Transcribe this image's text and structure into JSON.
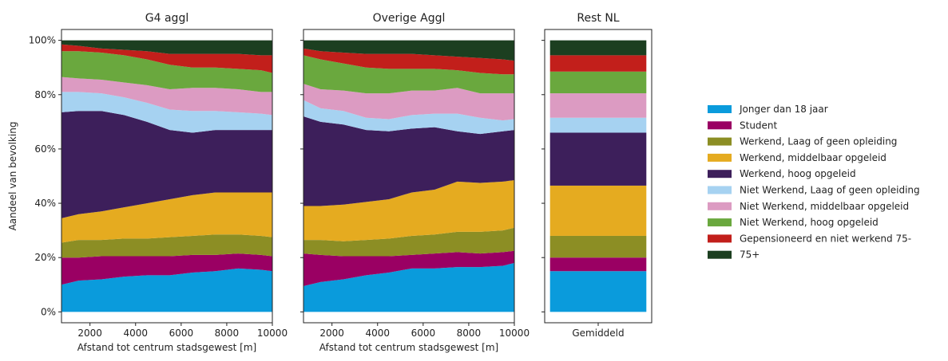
{
  "chart_data": [
    {
      "type": "area",
      "title": "G4 aggl",
      "xlabel": "Afstand tot centrum stadsgewest [m]",
      "ylabel": "Aandeel van bevolking",
      "x": [
        750,
        1500,
        2500,
        3500,
        4500,
        5500,
        6500,
        7500,
        8500,
        9500,
        10000
      ],
      "xlim": [
        750,
        10000
      ],
      "xticks": [
        2000,
        4000,
        6000,
        8000,
        10000
      ],
      "ylim": [
        -4,
        104
      ],
      "yticks": [
        {
          "value": 0,
          "label": "0%"
        },
        {
          "value": 20,
          "label": "20%"
        },
        {
          "value": 40,
          "label": "40%"
        },
        {
          "value": 60,
          "label": "60%"
        },
        {
          "value": 80,
          "label": "80%"
        },
        {
          "value": 100,
          "label": "100%"
        }
      ],
      "series": [
        {
          "name": "Jonger dan 18 jaar",
          "color": "#0a9bdc",
          "values": [
            10,
            11.5,
            12,
            13,
            13.5,
            13.5,
            14.5,
            15,
            16,
            15.5,
            15
          ]
        },
        {
          "name": "Student",
          "color": "#9a0063",
          "values": [
            10,
            8.5,
            8.5,
            7.5,
            7,
            7,
            6.5,
            6,
            5.5,
            5.5,
            5.5
          ]
        },
        {
          "name": "Werkend, Laag of geen opleiding",
          "color": "#8c8e24",
          "values": [
            5.5,
            6.5,
            6,
            6.5,
            6.5,
            7,
            7,
            7.5,
            7,
            7,
            7
          ]
        },
        {
          "name": "Werkend, middelbaar opgeleid",
          "color": "#e5ab20",
          "values": [
            9,
            9.5,
            10.5,
            11.5,
            13,
            14,
            15,
            15.5,
            15.5,
            16,
            16.5
          ]
        },
        {
          "name": "Werkend, hoog opgeleid",
          "color": "#3d1f5b",
          "values": [
            39,
            38,
            37,
            34,
            30,
            25.5,
            23,
            23,
            23,
            23,
            23
          ]
        },
        {
          "name": "Niet Werkend, Laag of geen opleiding",
          "color": "#a6d2f1",
          "values": [
            7.5,
            7,
            6.5,
            6.5,
            7,
            7.5,
            8,
            7,
            6.5,
            6,
            5.5
          ]
        },
        {
          "name": "Niet Werkend, middelbaar opgeleid",
          "color": "#dc9bc2",
          "values": [
            5.5,
            5,
            5,
            5.5,
            6.5,
            7.5,
            8.5,
            8.5,
            8.5,
            8,
            8.5
          ]
        },
        {
          "name": "Niet Werkend, hoog opgeleid",
          "color": "#6aa83e",
          "values": [
            9.5,
            10,
            10,
            10,
            9.5,
            9,
            7.5,
            7.5,
            7.5,
            8,
            7
          ]
        },
        {
          "name": "Gepensioneerd en niet werkend 75-",
          "color": "#c21f1b",
          "values": [
            2.5,
            2,
            1.5,
            2,
            3,
            4,
            5,
            5,
            5.5,
            5.5,
            6.5
          ]
        },
        {
          "name": "75+",
          "color": "#1c3f20",
          "values": [
            1.5,
            2,
            3,
            3.5,
            4,
            5,
            5,
            5,
            5,
            5.5,
            5.5
          ]
        }
      ]
    },
    {
      "type": "area",
      "title": "Overige Aggl",
      "xlabel": "Afstand tot centrum stadsgewest [m]",
      "x": [
        750,
        1500,
        2500,
        3500,
        4500,
        5500,
        6500,
        7500,
        8500,
        9500,
        10000
      ],
      "xlim": [
        750,
        10000
      ],
      "xticks": [
        2000,
        4000,
        6000,
        8000,
        10000
      ],
      "ylim": [
        -4,
        104
      ],
      "series": [
        {
          "color": "#0a9bdc",
          "values": [
            9.5,
            11,
            12,
            13.5,
            14.5,
            16,
            16,
            16.5,
            16.5,
            17,
            18
          ]
        },
        {
          "color": "#9a0063",
          "values": [
            12,
            10,
            8.5,
            7,
            6,
            5,
            5.5,
            5.5,
            5,
            5,
            4.5
          ]
        },
        {
          "color": "#8c8e24",
          "values": [
            5,
            5.5,
            5.5,
            6,
            6.5,
            7,
            7,
            7.5,
            8,
            8,
            8.5
          ]
        },
        {
          "color": "#e5ab20",
          "values": [
            12.5,
            12.5,
            13.5,
            14,
            14.5,
            16,
            16.5,
            18.5,
            18,
            18,
            17.5
          ]
        },
        {
          "color": "#3d1f5b",
          "values": [
            33,
            31,
            29.5,
            26.5,
            25,
            23.5,
            23,
            18.5,
            18,
            18.5,
            18.5
          ]
        },
        {
          "color": "#a6d2f1",
          "values": [
            6,
            5,
            5,
            4.5,
            4.5,
            5,
            5,
            6.5,
            6,
            4,
            4
          ]
        },
        {
          "color": "#dc9bc2",
          "values": [
            6,
            7,
            7.5,
            9,
            9.5,
            9,
            8.5,
            9.5,
            9,
            10,
            9.5
          ]
        },
        {
          "color": "#6aa83e",
          "values": [
            10.5,
            11,
            10,
            9.5,
            9,
            8,
            8,
            6.5,
            7.5,
            7,
            7
          ]
        },
        {
          "color": "#c21f1b",
          "values": [
            2.5,
            3,
            4,
            5,
            5.5,
            5.5,
            5,
            5,
            5.5,
            5.5,
            5
          ]
        },
        {
          "color": "#1c3f20",
          "values": [
            3,
            4,
            4.5,
            5,
            5,
            5,
            5.5,
            6,
            6.5,
            7,
            7.5
          ]
        }
      ]
    },
    {
      "type": "bar",
      "title": "Rest NL",
      "categories": [
        "Gemiddeld"
      ],
      "ylim": [
        -4,
        104
      ],
      "series": [
        {
          "color": "#0a9bdc",
          "values": [
            15
          ]
        },
        {
          "color": "#9a0063",
          "values": [
            5
          ]
        },
        {
          "color": "#8c8e24",
          "values": [
            8
          ]
        },
        {
          "color": "#e5ab20",
          "values": [
            18.5
          ]
        },
        {
          "color": "#3d1f5b",
          "values": [
            19.5
          ]
        },
        {
          "color": "#a6d2f1",
          "values": [
            5.5
          ]
        },
        {
          "color": "#dc9bc2",
          "values": [
            9
          ]
        },
        {
          "color": "#6aa83e",
          "values": [
            8
          ]
        },
        {
          "color": "#c21f1b",
          "values": [
            6
          ]
        },
        {
          "color": "#1c3f20",
          "values": [
            5.5
          ]
        }
      ]
    }
  ]
}
